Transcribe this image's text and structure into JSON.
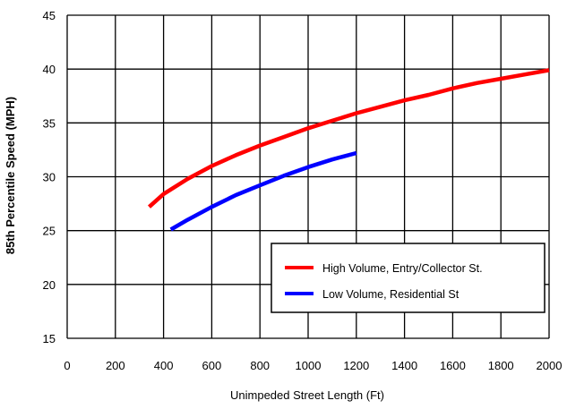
{
  "chart_data": {
    "type": "line",
    "title": "",
    "xlabel": "Unimpeded Street Length (Ft)",
    "ylabel": "85th Percentile Speed (MPH)",
    "xlim": [
      0,
      2000
    ],
    "ylim": [
      15,
      45
    ],
    "xticks": [
      0,
      200,
      400,
      600,
      800,
      1000,
      1200,
      1400,
      1600,
      1800,
      2000
    ],
    "yticks": [
      15,
      20,
      25,
      30,
      35,
      40,
      45
    ],
    "grid": true,
    "legend_position": "bottom-right",
    "series": [
      {
        "name": "High Volume, Entry/Collector St.",
        "color": "#ff0000",
        "x": [
          340,
          400,
          500,
          600,
          700,
          800,
          900,
          1000,
          1100,
          1200,
          1300,
          1400,
          1500,
          1600,
          1700,
          1800,
          1900,
          2000
        ],
        "y": [
          27.2,
          28.4,
          29.8,
          31.0,
          32.0,
          32.9,
          33.7,
          34.5,
          35.2,
          35.9,
          36.5,
          37.1,
          37.6,
          38.2,
          38.7,
          39.1,
          39.5,
          39.9
        ]
      },
      {
        "name": "Low Volume, Residential St",
        "color": "#0000ff",
        "x": [
          430,
          500,
          600,
          700,
          800,
          900,
          1000,
          1100,
          1200
        ],
        "y": [
          25.1,
          26.0,
          27.2,
          28.3,
          29.2,
          30.1,
          30.9,
          31.6,
          32.2
        ]
      }
    ]
  }
}
